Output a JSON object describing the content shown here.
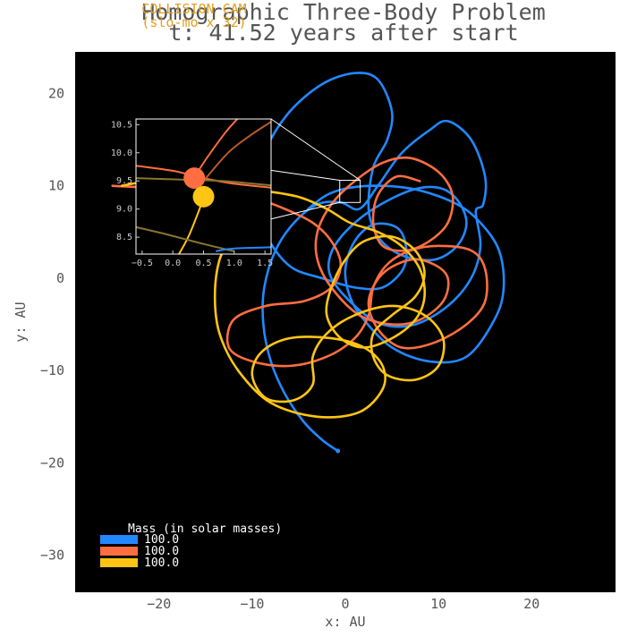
{
  "chart_data": {
    "type": "line",
    "title": "Homographic Three-Body Problem",
    "subtitle": "t: 41.52 years after start",
    "overlay_label_line1": "COLLISION CAM",
    "overlay_label_line2": "(slo-mo x 32)",
    "xlabel": "x: AU",
    "ylabel": "y: AU",
    "xlim": [
      -29,
      29
    ],
    "ylim": [
      -34,
      24.5
    ],
    "x_ticks": [
      -20,
      -10,
      0,
      10,
      20
    ],
    "y_ticks": [
      -30,
      -20,
      -10,
      0,
      10,
      20
    ],
    "x_tick_labels": [
      "−20",
      "−10",
      "0",
      "10",
      "20"
    ],
    "y_tick_labels": [
      "−30",
      "−20",
      "−10",
      "0",
      "10",
      "20"
    ],
    "background": "#000000",
    "grid": false,
    "legend": {
      "title": "Mass (in solar masses)",
      "placement": "bottom-left",
      "entries": [
        {
          "label": "100.0",
          "color": "#2288ff"
        },
        {
          "label": "100.0",
          "color": "#ff6e40"
        },
        {
          "label": "100.0",
          "color": "#ffc514"
        }
      ]
    },
    "series": [
      {
        "color": "#2288ff",
        "points": [
          [
            -0.8,
            -18.7
          ],
          [
            -2.5,
            -17.5
          ],
          [
            -4.5,
            -15.5
          ],
          [
            -6.5,
            -12.5
          ],
          [
            -8,
            -9
          ],
          [
            -8.8,
            -5
          ],
          [
            -8.7,
            -1
          ],
          [
            -7.5,
            3
          ],
          [
            -5.5,
            6
          ],
          [
            -3,
            8
          ],
          [
            -0.5,
            8.2
          ],
          [
            1.5,
            7.5
          ],
          [
            3.5,
            10
          ],
          [
            6,
            13.5
          ],
          [
            9,
            16
          ],
          [
            11,
            17
          ],
          [
            13.5,
            15
          ],
          [
            15,
            11
          ],
          [
            14.8,
            8
          ],
          [
            14,
            7.2
          ],
          [
            14.5,
            3.5
          ],
          [
            13.5,
            0
          ],
          [
            11,
            -3
          ],
          [
            7.5,
            -5
          ],
          [
            4,
            -5
          ],
          [
            1,
            -3
          ],
          [
            -1.5,
            0
          ],
          [
            -1.6,
            2.5
          ],
          [
            0,
            5
          ],
          [
            3,
            7.5
          ],
          [
            7,
            9.5
          ],
          [
            10,
            9.8
          ],
          [
            12,
            8.5
          ],
          [
            13,
            6
          ],
          [
            12,
            3.5
          ],
          [
            9.5,
            2
          ],
          [
            6,
            2.5
          ],
          [
            3.5,
            4.5
          ],
          [
            2.5,
            7.5
          ],
          [
            3,
            12
          ],
          [
            4.5,
            15
          ],
          [
            5,
            18
          ],
          [
            3.5,
            21.5
          ],
          [
            1,
            22.2
          ],
          [
            -2.5,
            21
          ],
          [
            -6,
            18
          ],
          [
            -8.5,
            14
          ],
          [
            -9.5,
            10
          ],
          [
            -9,
            6
          ],
          [
            -7.5,
            3
          ],
          [
            -5.5,
            1
          ],
          [
            -2.5,
            0
          ],
          [
            1,
            -1
          ],
          [
            4,
            -1
          ],
          [
            6.2,
            1
          ],
          [
            6.5,
            3.5
          ],
          [
            5.5,
            5.5
          ],
          [
            3,
            5.8
          ],
          [
            1,
            4
          ],
          [
            0,
            1
          ],
          [
            0.5,
            -2
          ],
          [
            2,
            -4.5
          ],
          [
            5,
            -7.5
          ],
          [
            9,
            -9
          ],
          [
            13,
            -8.5
          ],
          [
            16,
            -4.5
          ],
          [
            17,
            -1
          ],
          [
            16.5,
            3
          ],
          [
            14.5,
            6
          ],
          [
            12,
            8
          ],
          [
            8,
            9.5
          ],
          [
            4,
            10
          ],
          [
            0.5,
            9.8
          ],
          [
            -2,
            9
          ],
          [
            -4,
            7.5
          ]
        ]
      },
      {
        "color": "#ff6e40",
        "points": [
          [
            -25,
            10
          ],
          [
            -21,
            9.8
          ],
          [
            -17,
            9.5
          ],
          [
            -13,
            9.2
          ],
          [
            -9.5,
            8.6
          ],
          [
            -6.5,
            7.5
          ],
          [
            -3.5,
            6
          ],
          [
            -1.5,
            4
          ],
          [
            -0.5,
            1.5
          ],
          [
            -1.5,
            -1
          ],
          [
            -4.5,
            -2.5
          ],
          [
            -8.5,
            -3
          ],
          [
            -12,
            -4.5
          ],
          [
            -12.5,
            -7.5
          ],
          [
            -10,
            -9
          ],
          [
            -6,
            -9.5
          ],
          [
            -2,
            -8.5
          ],
          [
            1,
            -6.5
          ],
          [
            2.5,
            -4
          ],
          [
            3,
            -1
          ],
          [
            4.5,
            1.5
          ],
          [
            7,
            3
          ],
          [
            10,
            3.5
          ],
          [
            13.5,
            3
          ],
          [
            15,
            1
          ],
          [
            15,
            -2.5
          ],
          [
            13,
            -5
          ],
          [
            9.5,
            -7
          ],
          [
            6,
            -7.5
          ],
          [
            3.5,
            -5.5
          ],
          [
            2.5,
            -2.5
          ],
          [
            4,
            0.5
          ],
          [
            7,
            2
          ],
          [
            9.5,
            1.5
          ],
          [
            11,
            0
          ],
          [
            10.5,
            -2.5
          ],
          [
            8,
            -4.5
          ],
          [
            5,
            -5
          ],
          [
            1.5,
            -4
          ],
          [
            -1.5,
            -1
          ],
          [
            -3,
            2
          ],
          [
            -3,
            5
          ],
          [
            -1.5,
            8
          ],
          [
            1,
            10.5
          ],
          [
            4,
            12.5
          ],
          [
            7,
            13
          ],
          [
            10,
            11.5
          ],
          [
            11.5,
            9
          ],
          [
            11,
            6
          ],
          [
            9,
            4
          ],
          [
            6.5,
            3
          ],
          [
            4,
            3.5
          ],
          [
            3,
            6
          ],
          [
            3.5,
            9
          ],
          [
            5.5,
            11
          ],
          [
            8,
            10.5
          ]
        ]
      },
      {
        "color": "#ffc514",
        "points": [
          [
            -12,
            5
          ],
          [
            -13.5,
            2
          ],
          [
            -14,
            -2
          ],
          [
            -13.5,
            -6
          ],
          [
            -11.5,
            -10
          ],
          [
            -8,
            -13.5
          ],
          [
            -3,
            -15
          ],
          [
            1.5,
            -14.5
          ],
          [
            4,
            -12
          ],
          [
            4,
            -9.5
          ],
          [
            2,
            -7.5
          ],
          [
            -1.5,
            -6.5
          ],
          [
            -6,
            -6.5
          ],
          [
            -9,
            -8
          ],
          [
            -10,
            -10.5
          ],
          [
            -8.5,
            -13
          ],
          [
            -5.5,
            -13.2
          ],
          [
            -3.5,
            -11.5
          ],
          [
            -3.5,
            -8.5
          ],
          [
            -2,
            -6
          ],
          [
            1,
            -4
          ],
          [
            5,
            -3
          ],
          [
            8.5,
            -4
          ],
          [
            10.5,
            -6.5
          ],
          [
            10,
            -9.5
          ],
          [
            7.5,
            -11
          ],
          [
            4.5,
            -10.5
          ],
          [
            3,
            -8.5
          ],
          [
            3,
            -6
          ],
          [
            5,
            -4
          ],
          [
            7.5,
            -2
          ],
          [
            8.5,
            0.5
          ],
          [
            7.5,
            3
          ],
          [
            5,
            4.5
          ],
          [
            2,
            4
          ],
          [
            0,
            2
          ],
          [
            -1.5,
            -1
          ],
          [
            -2,
            -4
          ],
          [
            -0.5,
            -6.5
          ],
          [
            2,
            -7.5
          ],
          [
            5,
            -6.5
          ],
          [
            7.5,
            -4.5
          ],
          [
            8.5,
            -2
          ],
          [
            8,
            1
          ],
          [
            6,
            3.5
          ],
          [
            3.5,
            5
          ],
          [
            0.5,
            6
          ],
          [
            -2,
            7.5
          ],
          [
            -5,
            8.8
          ],
          [
            -9,
            9.5
          ],
          [
            -13,
            10
          ],
          [
            -17,
            10.5
          ],
          [
            -21,
            10.5
          ],
          [
            -24,
            10
          ]
        ]
      }
    ],
    "inset": {
      "xlim": [
        -0.6,
        1.6
      ],
      "ylim": [
        8.2,
        10.6
      ],
      "x_ticks": [
        -0.5,
        0,
        0.5,
        1,
        1.5
      ],
      "y_ticks": [
        8.5,
        9,
        9.5,
        10,
        10.5
      ],
      "x_tick_labels": [
        "−0.5",
        "0.0",
        "0.5",
        "1.0",
        "1.5"
      ],
      "y_tick_labels": [
        "8.5",
        "9.0",
        "9.5",
        "10.0",
        "10.5"
      ],
      "source_region": {
        "x": [
          -0.6,
          1.6
        ],
        "y": [
          8.2,
          10.6
        ]
      },
      "bodies": [
        {
          "x": 0.35,
          "y": 9.55,
          "color": "#ff6e40"
        },
        {
          "x": 0.5,
          "y": 9.22,
          "color": "#ffc514"
        }
      ],
      "segments": [
        {
          "color": "#ff6e40",
          "points": [
            [
              -0.6,
              9.77
            ],
            [
              0,
              9.68
            ],
            [
              0.5,
              9.55
            ],
            [
              1,
              9.45
            ],
            [
              1.6,
              9.38
            ]
          ]
        },
        {
          "color": "#ffc514",
          "points": [
            [
              0.5,
              9.2
            ],
            [
              0.4,
              8.9
            ],
            [
              0.25,
              8.5
            ],
            [
              0.1,
              8.2
            ]
          ]
        },
        {
          "color": "#ff6e40",
          "points": [
            [
              0.25,
              9.4
            ],
            [
              0.55,
              9.9
            ],
            [
              0.85,
              10.35
            ],
            [
              1.05,
              10.6
            ]
          ]
        },
        {
          "color": "#b85a2a",
          "points": [
            [
              0.5,
              9.5
            ],
            [
              0.9,
              10
            ],
            [
              1.25,
              10.3
            ],
            [
              1.6,
              10.55
            ]
          ]
        },
        {
          "color": "#8a7530",
          "points": [
            [
              -0.6,
              9.55
            ],
            [
              0.2,
              9.52
            ],
            [
              0.8,
              9.5
            ],
            [
              1.6,
              9.42
            ]
          ]
        },
        {
          "color": "#8a7530",
          "points": [
            [
              -0.6,
              8.68
            ],
            [
              -0.1,
              8.55
            ],
            [
              0.5,
              8.38
            ],
            [
              1.0,
              8.25
            ]
          ]
        },
        {
          "color": "#2288ff",
          "points": [
            [
              0.7,
              8.25
            ],
            [
              1.0,
              8.3
            ],
            [
              1.6,
              8.32
            ]
          ]
        }
      ]
    },
    "bodies": [
      {
        "x": -0.8,
        "y": -18.7,
        "color": "#2288ff"
      }
    ]
  }
}
